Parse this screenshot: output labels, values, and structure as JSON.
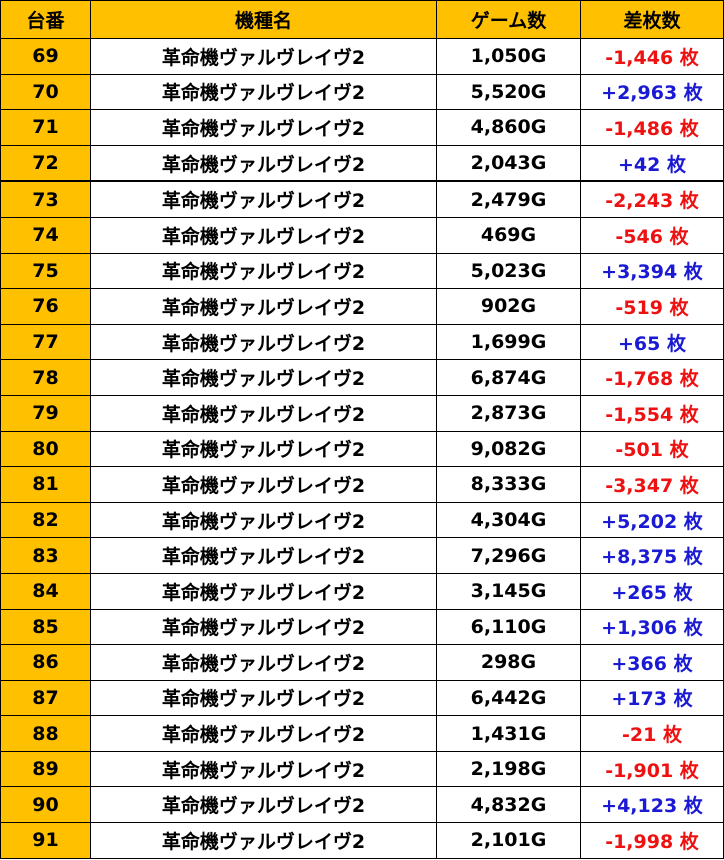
{
  "headers": {
    "id": "台番",
    "name": "機種名",
    "games": "ゲーム数",
    "diff": "差枚数"
  },
  "colors": {
    "header_bg": "#ffc000",
    "id_bg": "#ffc000",
    "negative": "#ee1111",
    "positive": "#1a1ad4"
  },
  "rows": [
    {
      "id": "69",
      "name": "革命機ヴァルヴレイヴ2",
      "games": "1,050G",
      "diff": "-1,446 枚"
    },
    {
      "id": "70",
      "name": "革命機ヴァルヴレイヴ2",
      "games": "5,520G",
      "diff": "+2,963 枚"
    },
    {
      "id": "71",
      "name": "革命機ヴァルヴレイヴ2",
      "games": "4,860G",
      "diff": "-1,486 枚"
    },
    {
      "id": "72",
      "name": "革命機ヴァルヴレイヴ2",
      "games": "2,043G",
      "diff": "+42 枚"
    },
    {
      "id": "73",
      "name": "革命機ヴァルヴレイヴ2",
      "games": "2,479G",
      "diff": "-2,243 枚"
    },
    {
      "id": "74",
      "name": "革命機ヴァルヴレイヴ2",
      "games": "469G",
      "diff": "-546 枚"
    },
    {
      "id": "75",
      "name": "革命機ヴァルヴレイヴ2",
      "games": "5,023G",
      "diff": "+3,394 枚"
    },
    {
      "id": "76",
      "name": "革命機ヴァルヴレイヴ2",
      "games": "902G",
      "diff": "-519 枚"
    },
    {
      "id": "77",
      "name": "革命機ヴァルヴレイヴ2",
      "games": "1,699G",
      "diff": "+65 枚"
    },
    {
      "id": "78",
      "name": "革命機ヴァルヴレイヴ2",
      "games": "6,874G",
      "diff": "-1,768 枚"
    },
    {
      "id": "79",
      "name": "革命機ヴァルヴレイヴ2",
      "games": "2,873G",
      "diff": "-1,554 枚"
    },
    {
      "id": "80",
      "name": "革命機ヴァルヴレイヴ2",
      "games": "9,082G",
      "diff": "-501 枚"
    },
    {
      "id": "81",
      "name": "革命機ヴァルヴレイヴ2",
      "games": "8,333G",
      "diff": "-3,347 枚"
    },
    {
      "id": "82",
      "name": "革命機ヴァルヴレイヴ2",
      "games": "4,304G",
      "diff": "+5,202 枚"
    },
    {
      "id": "83",
      "name": "革命機ヴァルヴレイヴ2",
      "games": "7,296G",
      "diff": "+8,375 枚"
    },
    {
      "id": "84",
      "name": "革命機ヴァルヴレイヴ2",
      "games": "3,145G",
      "diff": "+265 枚"
    },
    {
      "id": "85",
      "name": "革命機ヴァルヴレイヴ2",
      "games": "6,110G",
      "diff": "+1,306 枚"
    },
    {
      "id": "86",
      "name": "革命機ヴァルヴレイヴ2",
      "games": "298G",
      "diff": "+366 枚"
    },
    {
      "id": "87",
      "name": "革命機ヴァルヴレイヴ2",
      "games": "6,442G",
      "diff": "+173 枚"
    },
    {
      "id": "88",
      "name": "革命機ヴァルヴレイヴ2",
      "games": "1,431G",
      "diff": "-21 枚"
    },
    {
      "id": "89",
      "name": "革命機ヴァルヴレイヴ2",
      "games": "2,198G",
      "diff": "-1,901 枚"
    },
    {
      "id": "90",
      "name": "革命機ヴァルヴレイヴ2",
      "games": "4,832G",
      "diff": "+4,123 枚"
    },
    {
      "id": "91",
      "name": "革命機ヴァルヴレイヴ2",
      "games": "2,101G",
      "diff": "-1,998 枚"
    }
  ]
}
